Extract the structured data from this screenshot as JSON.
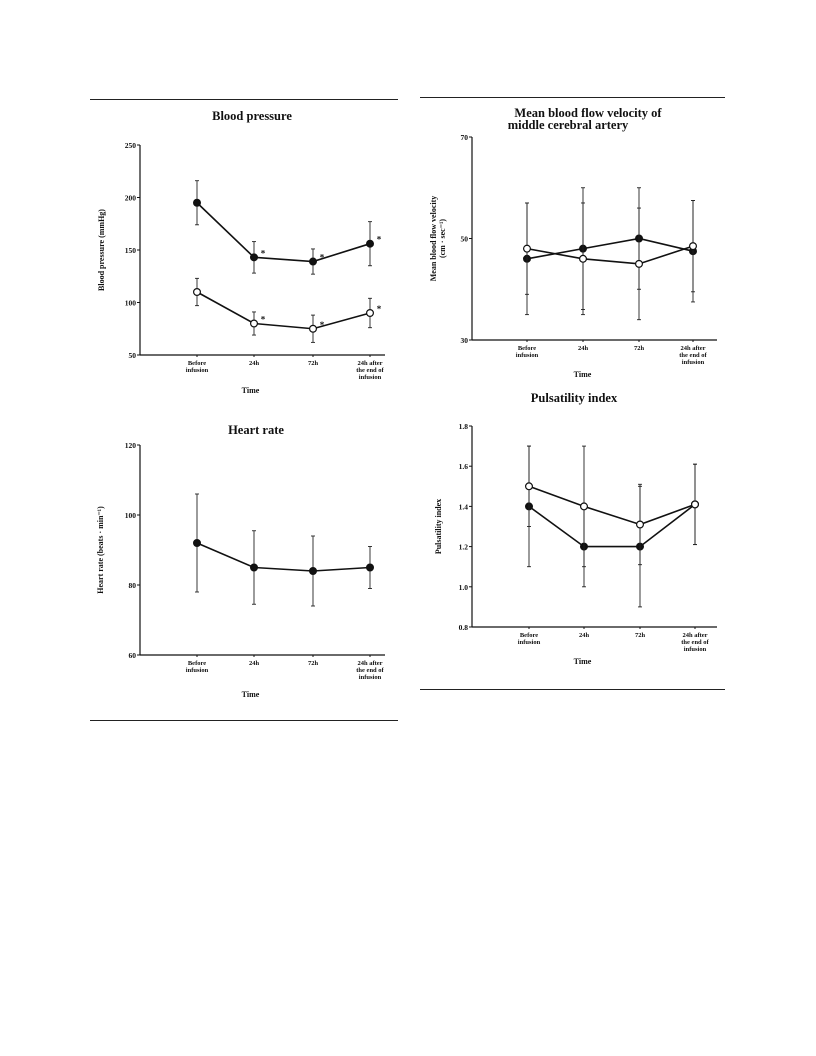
{
  "chart_data": [
    {
      "id": "bp",
      "type": "line",
      "title": "Blood pressure",
      "xlabel": "Time",
      "ylabel": "Blood pressure (mmHg)",
      "ylim": [
        50,
        250
      ],
      "yticks": [
        50,
        100,
        150,
        200,
        250
      ],
      "ytick_labels": [
        "50",
        "100",
        "150",
        "200",
        "250"
      ],
      "categories": [
        [
          "Before",
          "infusion"
        ],
        [
          "24h"
        ],
        [
          "72h"
        ],
        [
          "24h after",
          "the end of",
          "infusion"
        ]
      ],
      "series": [
        {
          "marker": "filled",
          "values": [
            195,
            143,
            139,
            156
          ],
          "err": [
            21,
            15,
            12,
            21
          ],
          "annotations": [
            "",
            "*",
            "*",
            "*"
          ]
        },
        {
          "marker": "open",
          "values": [
            110,
            80,
            75,
            90
          ],
          "err": [
            13,
            11,
            13,
            14
          ],
          "annotations": [
            "",
            "*",
            "*",
            "*"
          ]
        }
      ]
    },
    {
      "id": "hr",
      "type": "line",
      "title": "Heart rate",
      "xlabel": "Time",
      "ylabel": "Heart rate (beats · min⁻¹)",
      "ylim": [
        60,
        120
      ],
      "yticks": [
        60,
        80,
        100,
        120
      ],
      "ytick_labels": [
        "60",
        "80",
        "100",
        "120"
      ],
      "categories": [
        [
          "Before",
          "infusion"
        ],
        [
          "24h"
        ],
        [
          "72h"
        ],
        [
          "24h after",
          "the end of",
          "infusion"
        ]
      ],
      "series": [
        {
          "marker": "filled",
          "values": [
            92,
            85,
            84,
            85
          ],
          "err": [
            14,
            10.5,
            10,
            6
          ]
        }
      ]
    },
    {
      "id": "vel",
      "type": "line",
      "title": "Mean blood flow velocity of middle cerebral artery",
      "title_lines": [
        "Mean blood flow velocity of",
        "middle cerebral artery"
      ],
      "xlabel": "Time",
      "ylabel": "Mean blood flow velocity (cm · sec⁻¹)",
      "ylabel_lines": [
        "Mean blood flow velocity",
        "(cm · sec⁻¹)"
      ],
      "ylim": [
        30,
        70
      ],
      "yticks": [
        30,
        50,
        70
      ],
      "ytick_labels": [
        "30",
        "50",
        "70"
      ],
      "categories": [
        [
          "Before",
          "infusion"
        ],
        [
          "24h"
        ],
        [
          "72h"
        ],
        [
          "24h after",
          "the end of",
          "infusion"
        ]
      ],
      "series": [
        {
          "marker": "filled",
          "values": [
            46,
            48,
            50,
            47.5
          ],
          "err": [
            11,
            12,
            10,
            10
          ]
        },
        {
          "marker": "open",
          "values": [
            48,
            46,
            45,
            48.5
          ],
          "err": [
            9,
            11,
            11,
            9
          ]
        }
      ]
    },
    {
      "id": "pi",
      "type": "line",
      "title": "Pulsatility index",
      "xlabel": "Time",
      "ylabel": "Pulsatility index",
      "ylim": [
        0.8,
        1.8
      ],
      "yticks": [
        0.8,
        1.0,
        1.2,
        1.4,
        1.6,
        1.8
      ],
      "ytick_labels": [
        "0.8",
        "1.0",
        "1.2",
        "1.4",
        "1.6",
        "1.8"
      ],
      "categories": [
        [
          "Before",
          "infusion"
        ],
        [
          "24h"
        ],
        [
          "72h"
        ],
        [
          "24h after",
          "the end of",
          "infusion"
        ]
      ],
      "series": [
        {
          "marker": "filled",
          "values": [
            1.4,
            1.2,
            1.2,
            1.41
          ],
          "err": [
            0.3,
            0.2,
            0.3,
            0.2
          ]
        },
        {
          "marker": "open",
          "values": [
            1.5,
            1.4,
            1.31,
            1.41
          ],
          "err": [
            0.2,
            0.3,
            0.2,
            0.2
          ]
        }
      ]
    }
  ]
}
